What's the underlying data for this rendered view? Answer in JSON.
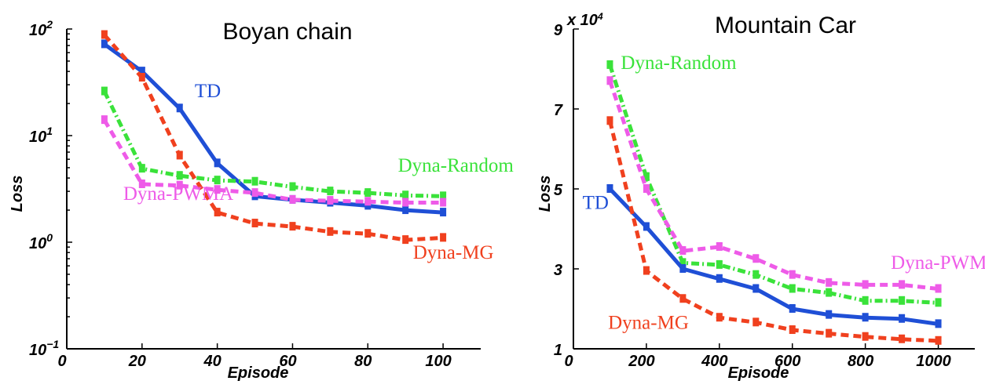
{
  "chart_data": [
    {
      "type": "line",
      "title": "Boyan chain",
      "xlabel": "Episode",
      "ylabel": "Loss",
      "y_scale": "log",
      "xlim": [
        0,
        110
      ],
      "ylim": [
        0.1,
        100
      ],
      "x_ticks": [
        "0",
        "20",
        "40",
        "60",
        "80",
        "100"
      ],
      "y_ticks": [
        {
          "base": "10",
          "exp": "2"
        },
        {
          "base": "10",
          "exp": "1"
        },
        {
          "base": "10",
          "exp": "0"
        },
        {
          "base": "10",
          "exp": "−1"
        }
      ],
      "x": [
        10,
        20,
        30,
        40,
        50,
        60,
        70,
        80,
        90,
        100
      ],
      "series": [
        {
          "name": "TD",
          "color": "#1f4fd6",
          "style": "solid",
          "values": [
            72,
            40,
            18,
            5.5,
            2.7,
            2.5,
            2.35,
            2.2,
            2.0,
            1.9
          ]
        },
        {
          "name": "Dyna-Random",
          "color": "#3ae23a",
          "style": "dashdot",
          "values": [
            26,
            4.9,
            4.2,
            3.8,
            3.7,
            3.3,
            3.0,
            2.9,
            2.75,
            2.7
          ]
        },
        {
          "name": "Dyna-PWMA",
          "color": "#ee5be8",
          "style": "dashed",
          "values": [
            14,
            3.5,
            3.4,
            3.1,
            2.9,
            2.5,
            2.45,
            2.4,
            2.35,
            2.35
          ]
        },
        {
          "name": "Dyna-MG",
          "color": "#f0401e",
          "style": "dashed",
          "values": [
            88,
            35,
            6.5,
            1.9,
            1.5,
            1.4,
            1.25,
            1.2,
            1.05,
            1.1
          ]
        }
      ],
      "labels": [
        {
          "series": "TD",
          "text": "TD",
          "x": 34,
          "y": 23
        },
        {
          "series": "Dyna-Random",
          "text": "Dyna-Random",
          "x": 88,
          "y": 4.6
        },
        {
          "series": "Dyna-PWMA",
          "text": "Dyna-PWMA",
          "x": 15,
          "y": 2.5
        },
        {
          "series": "Dyna-MG",
          "text": "Dyna-MG",
          "x": 92,
          "y": 0.7
        }
      ],
      "grid": false
    },
    {
      "type": "line",
      "title": "Mountain Car",
      "xlabel": "Episode",
      "ylabel": "Loss",
      "y_scale": "linear",
      "y_multiplier": {
        "base": "x 10",
        "exp": "4"
      },
      "xlim": [
        0,
        1100
      ],
      "ylim": [
        1,
        9
      ],
      "x_ticks": [
        "0",
        "200",
        "400",
        "600",
        "800",
        "1000"
      ],
      "y_ticks": [
        "9",
        "7",
        "5",
        "3",
        "1"
      ],
      "x": [
        100,
        200,
        300,
        400,
        500,
        600,
        700,
        800,
        900,
        1000
      ],
      "series": [
        {
          "name": "Dyna-Random",
          "color": "#3ae23a",
          "style": "dashdot",
          "values": [
            8.1,
            5.3,
            3.15,
            3.1,
            2.85,
            2.5,
            2.4,
            2.2,
            2.2,
            2.15
          ]
        },
        {
          "name": "Dyna-PWMA",
          "color": "#ee5be8",
          "style": "dashed",
          "values": [
            7.7,
            5.0,
            3.45,
            3.55,
            3.25,
            2.85,
            2.65,
            2.6,
            2.6,
            2.5
          ]
        },
        {
          "name": "TD",
          "color": "#1f4fd6",
          "style": "solid",
          "values": [
            5.0,
            4.05,
            3.0,
            2.75,
            2.5,
            2.0,
            1.85,
            1.78,
            1.75,
            1.62
          ]
        },
        {
          "name": "Dyna-MG",
          "color": "#f0401e",
          "style": "dashed",
          "values": [
            6.7,
            2.95,
            2.25,
            1.78,
            1.66,
            1.47,
            1.38,
            1.3,
            1.24,
            1.2
          ]
        }
      ],
      "labels": [
        {
          "series": "Dyna-Random",
          "text": "Dyna-Random",
          "x": 130,
          "y": 8.0
        },
        {
          "series": "Dyna-PWMA",
          "text": "Dyna-PWMA",
          "x": 870,
          "y": 3.0
        },
        {
          "series": "TD",
          "text": "TD",
          "x": 25,
          "y": 4.5
        },
        {
          "series": "Dyna-MG",
          "text": "Dyna-MG",
          "x": 95,
          "y": 1.5
        }
      ],
      "grid": false
    }
  ]
}
